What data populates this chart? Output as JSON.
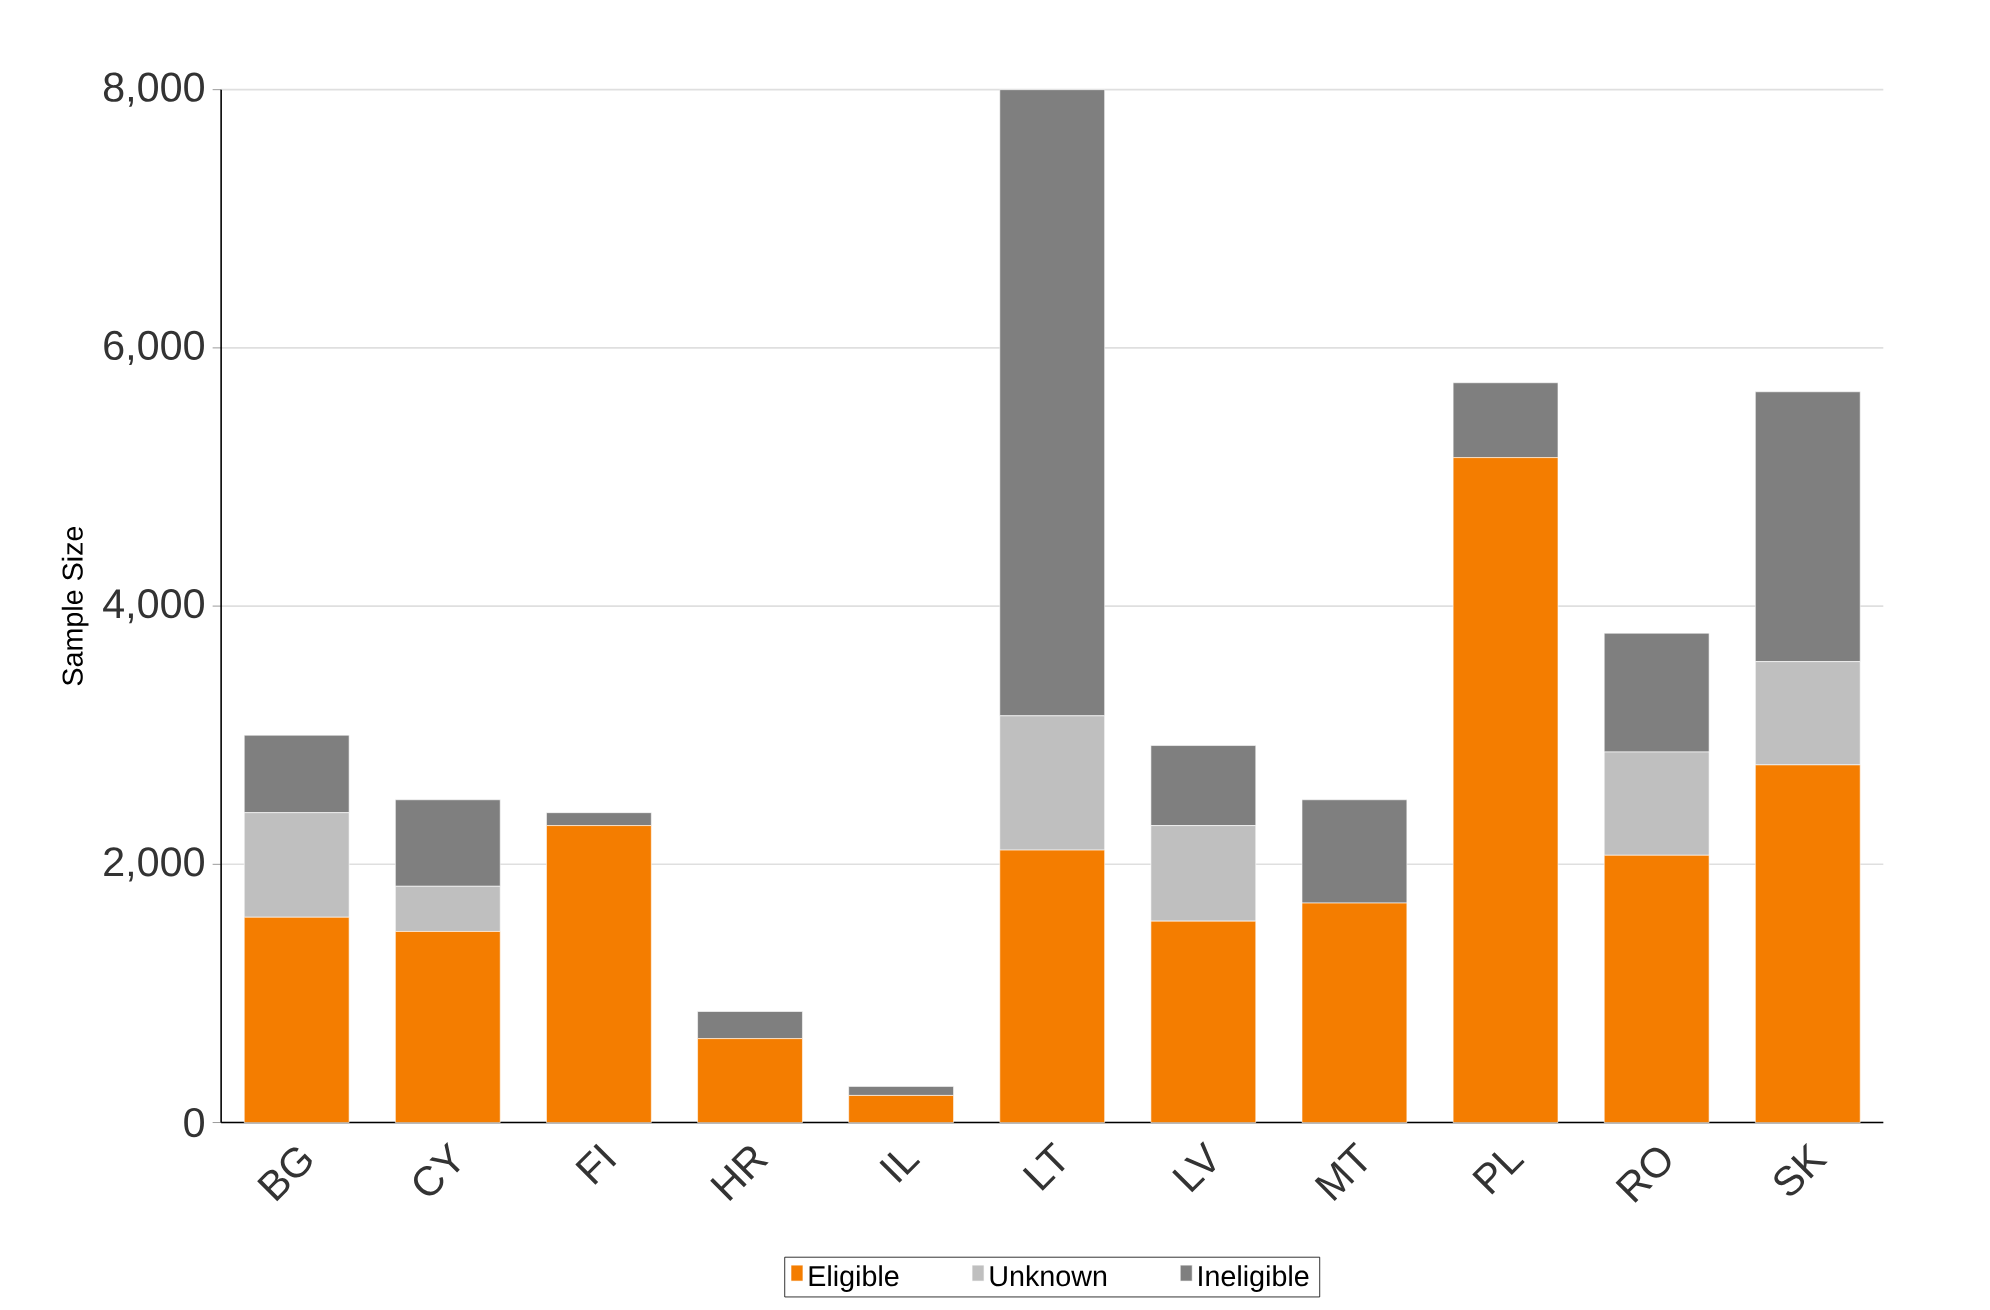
{
  "chart_data": {
    "type": "bar",
    "stacked": true,
    "ylabel": "Sample Size",
    "categories": [
      "BG",
      "CY",
      "FI",
      "HR",
      "IL",
      "LT",
      "LV",
      "MT",
      "PL",
      "RO",
      "SK"
    ],
    "series": [
      {
        "name": "Eligible",
        "color": "#f47d00",
        "values": [
          1590,
          1480,
          2300,
          650,
          210,
          2110,
          1560,
          1700,
          5150,
          2070,
          2770
        ]
      },
      {
        "name": "Unknown",
        "color": "#bfbfbf",
        "values": [
          810,
          350,
          0,
          0,
          0,
          1040,
          740,
          0,
          0,
          800,
          800
        ]
      },
      {
        "name": "Ineligible",
        "color": "#7f7f7f",
        "values": [
          600,
          670,
          100,
          210,
          70,
          4850,
          620,
          800,
          580,
          920,
          2090
        ]
      }
    ],
    "ylim": [
      0,
      8000
    ],
    "yticks": [
      {
        "value": 0,
        "label": "0"
      },
      {
        "value": 2000,
        "label": "2,000"
      },
      {
        "value": 4000,
        "label": "4,000"
      },
      {
        "value": 6000,
        "label": "6,000"
      },
      {
        "value": 8000,
        "label": "8,000"
      }
    ],
    "grid": "y",
    "legend": "bottom"
  }
}
